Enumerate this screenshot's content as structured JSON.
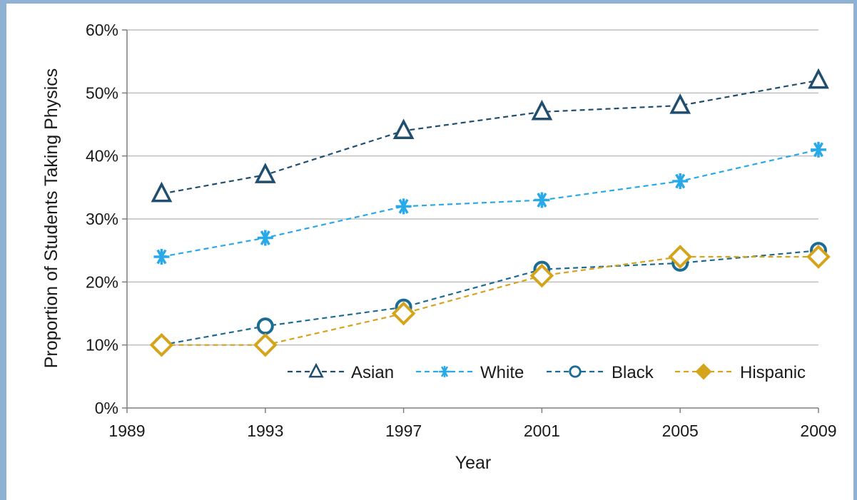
{
  "colors": {
    "background": "#ffffff",
    "frame": "#8fb2d4",
    "gridline": "#bfbfbf",
    "axis": "#7f7f7f"
  },
  "chart_data": {
    "type": "line",
    "title": "",
    "xlabel": "Year",
    "ylabel": "Proportion of Students Taking Physics",
    "x_ticks": [
      "1989",
      "1993",
      "1997",
      "2001",
      "2005",
      "2009"
    ],
    "y_ticks": [
      "0%",
      "10%",
      "20%",
      "30%",
      "40%",
      "50%",
      "60%"
    ],
    "xlim": [
      1989,
      2009
    ],
    "ylim": [
      0,
      60
    ],
    "y_unit": "%",
    "grid": "horizontal",
    "legend_position": "bottom-right",
    "x": [
      1990,
      1993,
      1997,
      2001,
      2005,
      2009
    ],
    "series": [
      {
        "name": "Asian",
        "values": [
          34,
          37,
          44,
          47,
          48,
          52
        ],
        "color": "#1f4e6e",
        "marker": "triangle",
        "line": "dashed"
      },
      {
        "name": "White",
        "values": [
          24,
          27,
          32,
          33,
          36,
          41
        ],
        "color": "#29a9e8",
        "marker": "asterisk",
        "line": "dashed"
      },
      {
        "name": "Black",
        "values": [
          10,
          13,
          16,
          22,
          23,
          25
        ],
        "color": "#1b6b93",
        "marker": "circle",
        "line": "dashed"
      },
      {
        "name": "Hispanic",
        "values": [
          10,
          10,
          15,
          21,
          24,
          24
        ],
        "color": "#d4a51c",
        "marker": "diamond",
        "line": "dashed"
      }
    ]
  }
}
